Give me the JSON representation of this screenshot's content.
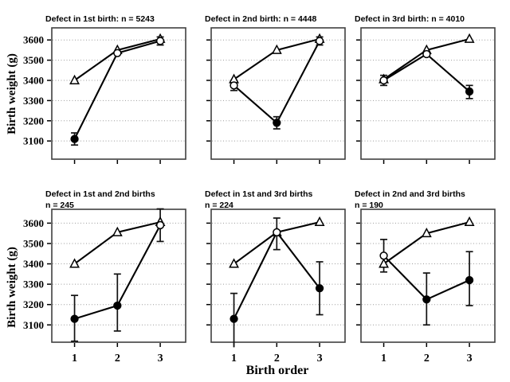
{
  "figure": {
    "ylabel": "Birth weight (g)",
    "xlabel": "Birth order",
    "background": "#ffffff",
    "line_color": "#000000",
    "grid_color": "#9b9b9b",
    "frame_color": "#404040",
    "yticks": [
      3600,
      3500,
      3400,
      3300,
      3200,
      3100
    ],
    "xtick_labels": [
      "1",
      "2",
      "3"
    ]
  },
  "chart_data": [
    {
      "type": "line",
      "title_lines": [
        "Defect in 1st birth: n = 5243"
      ],
      "x": [
        1,
        2,
        3
      ],
      "ylim": [
        3010,
        3660
      ],
      "grid": true,
      "series": [
        {
          "name": "triangles",
          "marker": "open-triangle",
          "values": [
            3400,
            3550,
            3605
          ]
        },
        {
          "name": "circles",
          "marker": "circle",
          "values": [
            3110,
            3535,
            3595
          ],
          "filled": [
            true,
            false,
            false
          ],
          "error_bars": [
            [
              3080,
              3140
            ],
            null,
            [
              3575,
              3615
            ]
          ]
        }
      ]
    },
    {
      "type": "line",
      "title_lines": [
        "Defect in 2nd birth: n = 4448"
      ],
      "x": [
        1,
        2,
        3
      ],
      "ylim": [
        3010,
        3660
      ],
      "grid": true,
      "series": [
        {
          "name": "triangles",
          "marker": "open-triangle",
          "values": [
            3405,
            3550,
            3605
          ]
        },
        {
          "name": "circles",
          "marker": "circle",
          "values": [
            3375,
            3190,
            3595
          ],
          "filled": [
            false,
            true,
            false
          ],
          "error_bars": [
            [
              3350,
              3400
            ],
            [
              3160,
              3220
            ],
            [
              3575,
              3615
            ]
          ]
        }
      ]
    },
    {
      "type": "line",
      "title_lines": [
        "Defect in 3rd birth: n = 4010"
      ],
      "x": [
        1,
        2,
        3
      ],
      "ylim": [
        3010,
        3660
      ],
      "grid": true,
      "series": [
        {
          "name": "triangles",
          "marker": "open-triangle",
          "values": [
            3405,
            3550,
            3605
          ]
        },
        {
          "name": "circles",
          "marker": "circle",
          "values": [
            3400,
            3530,
            3345
          ],
          "filled": [
            false,
            false,
            true
          ],
          "error_bars": [
            [
              3375,
              3425
            ],
            null,
            [
              3310,
              3375
            ]
          ]
        }
      ]
    },
    {
      "type": "line",
      "title_lines": [
        "Defect in 1st and 2nd births",
        "n = 245"
      ],
      "x": [
        1,
        2,
        3
      ],
      "ylim": [
        3015,
        3668
      ],
      "grid": true,
      "series": [
        {
          "name": "triangles",
          "marker": "open-triangle",
          "values": [
            3400,
            3555,
            3605
          ]
        },
        {
          "name": "circles",
          "marker": "circle",
          "values": [
            3130,
            3195,
            3590
          ],
          "filled": [
            true,
            true,
            false
          ],
          "error_bars": [
            [
              3020,
              3245
            ],
            [
              3070,
              3350
            ],
            [
              3510,
              3670
            ]
          ]
        }
      ]
    },
    {
      "type": "line",
      "title_lines": [
        "Defect in 1st and 3rd births",
        "n = 224"
      ],
      "x": [
        1,
        2,
        3
      ],
      "ylim": [
        3015,
        3668
      ],
      "grid": true,
      "series": [
        {
          "name": "triangles",
          "marker": "open-triangle",
          "values": [
            3400,
            3555,
            3605
          ]
        },
        {
          "name": "circles",
          "marker": "circle",
          "values": [
            3130,
            3555,
            3280
          ],
          "filled": [
            true,
            false,
            true
          ],
          "error_bars": [
            [
              2990,
              3255
            ],
            [
              3470,
              3625
            ],
            [
              3150,
              3410
            ]
          ]
        }
      ]
    },
    {
      "type": "line",
      "title_lines": [
        "Defect in 2nd and 3rd births",
        "n = 190"
      ],
      "x": [
        1,
        2,
        3
      ],
      "ylim": [
        3015,
        3668
      ],
      "grid": true,
      "series": [
        {
          "name": "triangles",
          "marker": "open-triangle",
          "values": [
            3400,
            3550,
            3605
          ]
        },
        {
          "name": "circles",
          "marker": "circle",
          "values": [
            3440,
            3225,
            3320
          ],
          "filled": [
            false,
            true,
            true
          ],
          "error_bars": [
            [
              3360,
              3520
            ],
            [
              3100,
              3355
            ],
            [
              3195,
              3460
            ]
          ]
        }
      ]
    }
  ]
}
